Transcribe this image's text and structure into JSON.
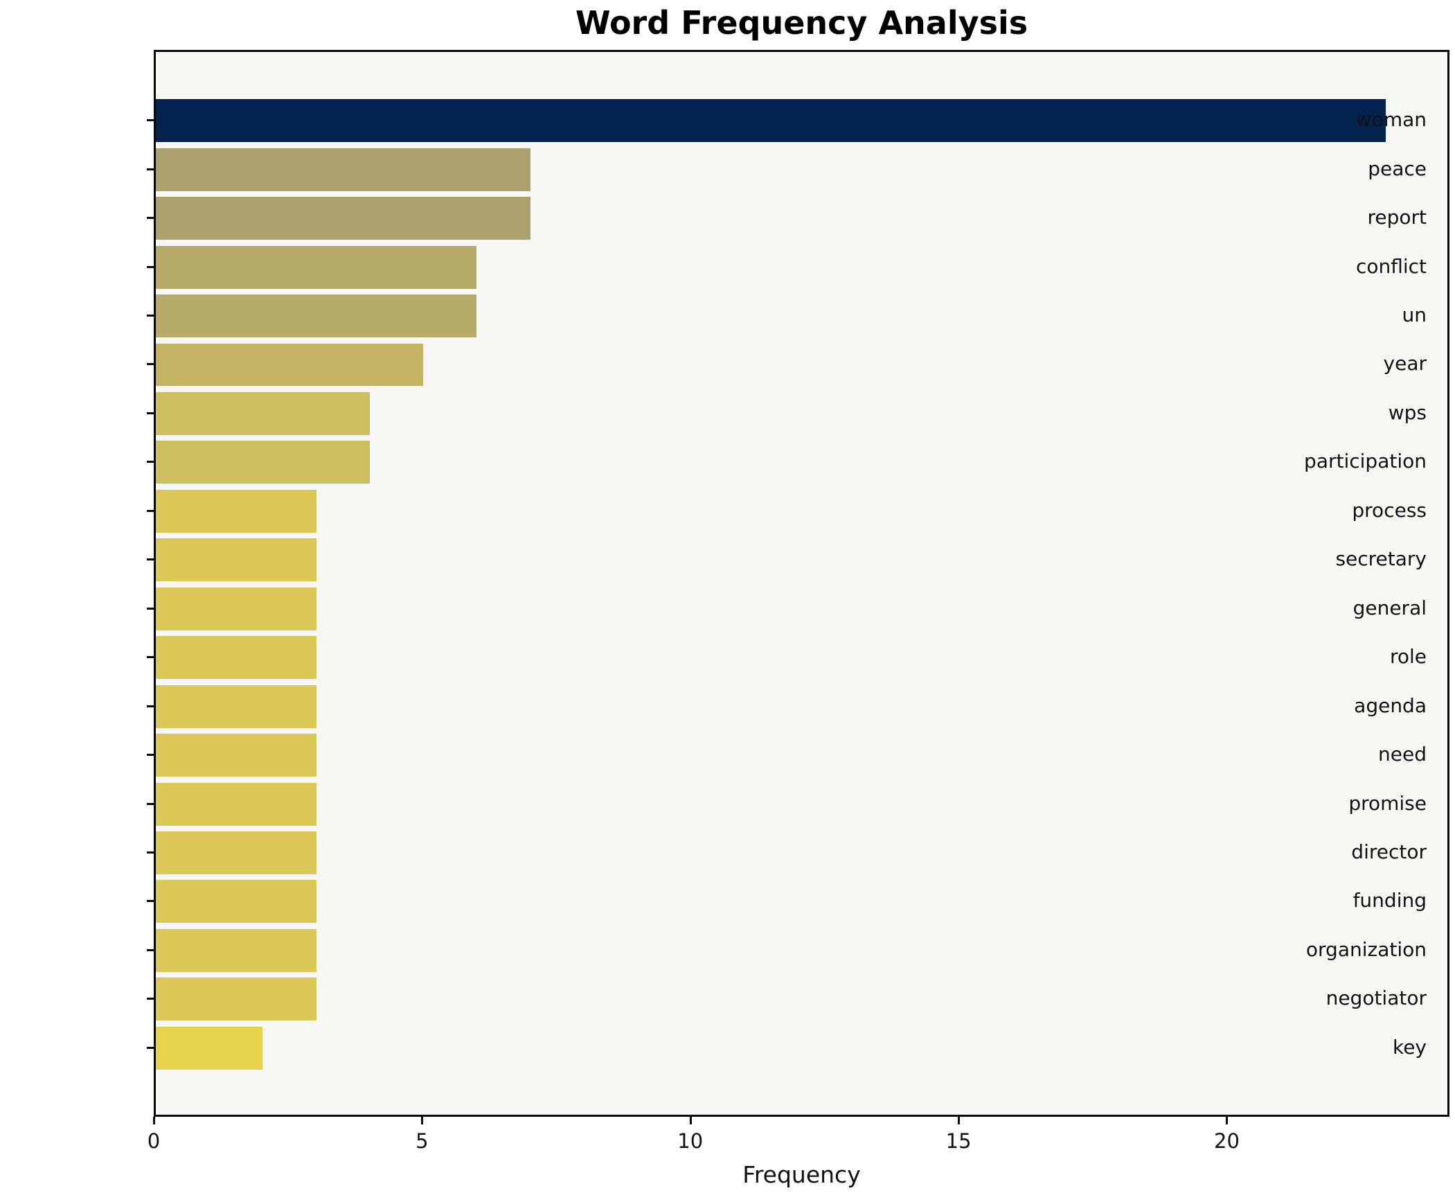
{
  "title": "Word Frequency Analysis",
  "chart_data": {
    "type": "bar",
    "orientation": "horizontal",
    "title": "Word Frequency Analysis",
    "xlabel": "Frequency",
    "ylabel": "",
    "categories": [
      "woman",
      "peace",
      "report",
      "conflict",
      "un",
      "year",
      "wps",
      "participation",
      "process",
      "secretary",
      "general",
      "role",
      "agenda",
      "need",
      "promise",
      "director",
      "funding",
      "organization",
      "negotiator",
      "key"
    ],
    "values": [
      23,
      7,
      7,
      6,
      6,
      5,
      4,
      4,
      3,
      3,
      3,
      3,
      3,
      3,
      3,
      3,
      3,
      3,
      3,
      2
    ],
    "bar_colors": [
      "#02234e",
      "#aba06e",
      "#aba06e",
      "#b8aa6a",
      "#b8aa6a",
      "#c3b465",
      "#cdbe60",
      "#cdbe60",
      "#dbc857",
      "#dbc857",
      "#dbc857",
      "#dbc857",
      "#dbc857",
      "#dbc857",
      "#dbc857",
      "#dbc857",
      "#dbc857",
      "#dbc857",
      "#dbc857",
      "#e7d34b"
    ],
    "xlim": [
      0,
      24.15
    ],
    "xticks": [
      0,
      5,
      10,
      15,
      20
    ],
    "grid": false,
    "legend_position": "none",
    "plot_background": "#f7f7f5",
    "figure_background": "#ffffff",
    "spine_color": "#0a0a0a"
  }
}
